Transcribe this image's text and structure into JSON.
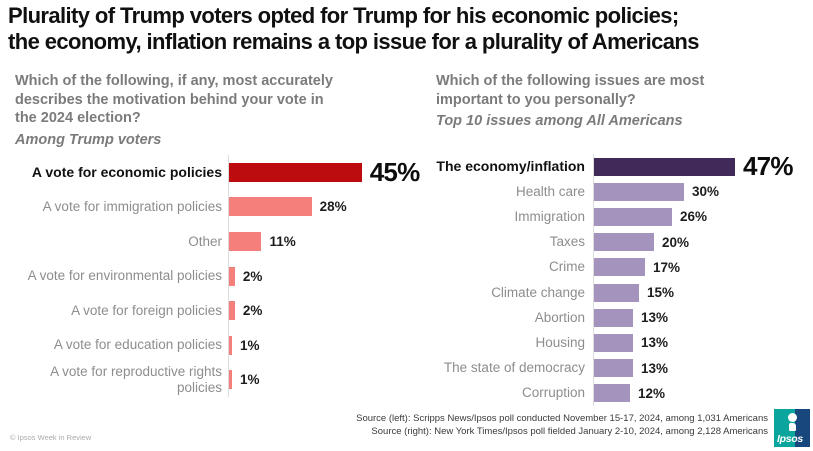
{
  "page_title": {
    "line1": "Plurality of Trump voters opted for Trump for his economic policies;",
    "line2": "the economy, inflation remains a top issue for a plurality of Americans"
  },
  "chart_data": [
    {
      "type": "bar",
      "orientation": "horizontal",
      "question_lines": [
        "Which of the following, if any, most accurately",
        "describes the motivation behind your vote in",
        "the 2024 election?"
      ],
      "subtitle": "Among Trump voters",
      "categories": [
        "A vote for economic policies",
        "A vote for immigration policies",
        "Other",
        "A vote for environmental policies",
        "A vote for foreign policies",
        "A vote for education policies",
        "A vote for reproductive rights policies"
      ],
      "values": [
        45,
        28,
        11,
        2,
        2,
        1,
        1
      ],
      "value_labels": [
        "45%",
        "28%",
        "11%",
        "2%",
        "2%",
        "1%",
        "1%"
      ],
      "highlight_index": 0,
      "bar_color": "#f5807b",
      "highlight_color": "#bd0c0f",
      "xlim": [
        0,
        50
      ],
      "grid": false,
      "legend": false
    },
    {
      "type": "bar",
      "orientation": "horizontal",
      "question_lines": [
        "Which of the following issues are most",
        "important to you personally?"
      ],
      "subtitle": "Top 10 issues among All Americans",
      "categories": [
        "The economy/inflation",
        "Health care",
        "Immigration",
        "Taxes",
        "Crime",
        "Climate change",
        "Abortion",
        "Housing",
        "The state of democracy",
        "Corruption"
      ],
      "values": [
        47,
        30,
        26,
        20,
        17,
        15,
        13,
        13,
        13,
        12
      ],
      "value_labels": [
        "47%",
        "30%",
        "26%",
        "20%",
        "17%",
        "15%",
        "13%",
        "13%",
        "13%",
        "12%"
      ],
      "highlight_index": 0,
      "bar_color": "#a393bd",
      "highlight_color": "#41295a",
      "xlim": [
        0,
        50
      ],
      "grid": false,
      "legend": false
    }
  ],
  "footer": {
    "copyright": "© Ipsos Week in Review",
    "source_line1": "Source (left): Scripps News/Ipsos poll conducted November 15-17, 2024, among 1,031 Americans",
    "source_line2": "Source (right): New York Times/Ipsos poll fielded January 2-10, 2024, among 2,128 Americans",
    "logo_text": "Ipsos"
  }
}
